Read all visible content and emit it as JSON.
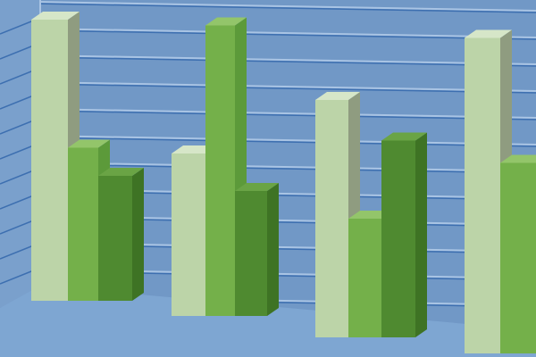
{
  "chart_data": {
    "type": "bar",
    "style": "3d-grouped",
    "title": "",
    "xlabel": "",
    "ylabel": "",
    "categories": [
      "",
      "",
      "",
      ""
    ],
    "series": [
      {
        "values": [
          9.0,
          5.2,
          7.6,
          10.1
        ]
      },
      {
        "values": [
          4.9,
          9.3,
          3.8,
          6.1
        ]
      },
      {
        "values": [
          4.0,
          4.0,
          6.3,
          null
        ]
      }
    ],
    "grid": true,
    "legend": "none",
    "colors": {
      "background": "#7198c6",
      "gridline": "#3d6fb0",
      "gridline_highlight": "#a9c4e4",
      "series": [
        "#bcd4a8",
        "#74b04a",
        "#4f8a30"
      ],
      "series_side": [
        "#8f9c80",
        "#5c9a3a",
        "#3e7324"
      ],
      "series_top": [
        "#d6e6c8",
        "#93c56a",
        "#6aa445"
      ]
    }
  }
}
